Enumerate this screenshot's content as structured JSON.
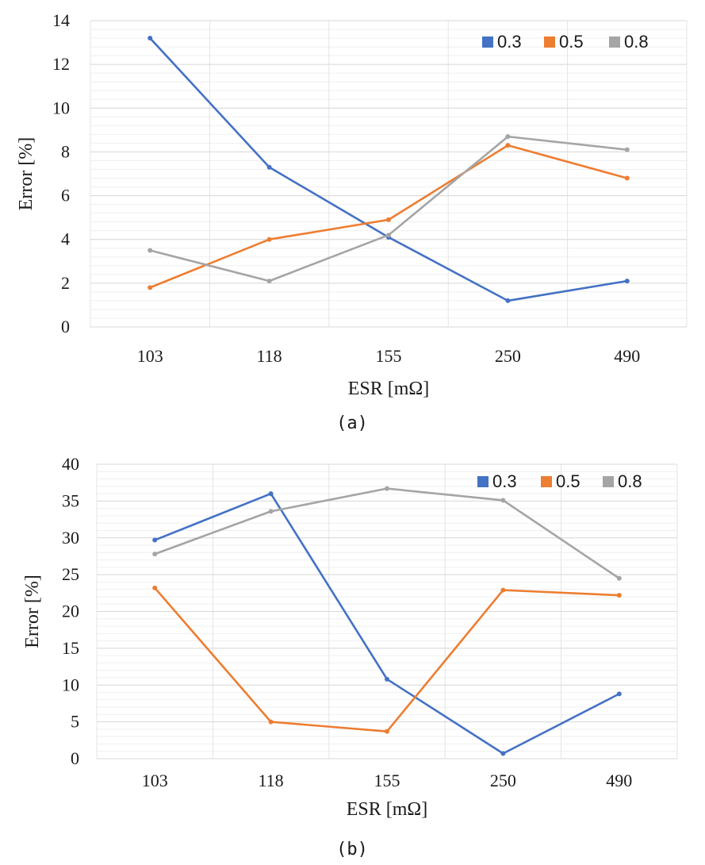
{
  "chart_data": [
    {
      "type": "line",
      "caption": "(a)",
      "categories": [
        "103",
        "118",
        "155",
        "250",
        "490"
      ],
      "xlabel": "ESR [mΩ]",
      "ylabel": "Error [%]",
      "ylim": [
        0,
        14
      ],
      "yticks": [
        0,
        2,
        4,
        6,
        8,
        10,
        12,
        14
      ],
      "grid": true,
      "legend_position": "top-right",
      "series": [
        {
          "name": "0.3",
          "color": "#4472C4",
          "values": [
            13.2,
            7.3,
            4.1,
            1.2,
            2.1
          ]
        },
        {
          "name": "0.5",
          "color": "#ED7D31",
          "values": [
            1.8,
            4.0,
            4.9,
            8.3,
            6.8
          ]
        },
        {
          "name": "0.8",
          "color": "#A5A5A5",
          "values": [
            3.5,
            2.1,
            4.2,
            8.7,
            8.1
          ]
        }
      ]
    },
    {
      "type": "line",
      "caption": "(b)",
      "categories": [
        "103",
        "118",
        "155",
        "250",
        "490"
      ],
      "xlabel": "ESR [mΩ]",
      "ylabel": "Error [%]",
      "ylim": [
        0,
        40
      ],
      "yticks": [
        0,
        5,
        10,
        15,
        20,
        25,
        30,
        35,
        40
      ],
      "grid": true,
      "legend_position": "top-right",
      "series": [
        {
          "name": "0.3",
          "color": "#4472C4",
          "values": [
            29.7,
            36.0,
            10.8,
            0.7,
            8.8
          ]
        },
        {
          "name": "0.5",
          "color": "#ED7D31",
          "values": [
            23.2,
            5.0,
            3.7,
            22.9,
            22.2
          ]
        },
        {
          "name": "0.8",
          "color": "#A5A5A5",
          "values": [
            27.8,
            33.6,
            36.7,
            35.1,
            24.5
          ]
        }
      ]
    }
  ]
}
